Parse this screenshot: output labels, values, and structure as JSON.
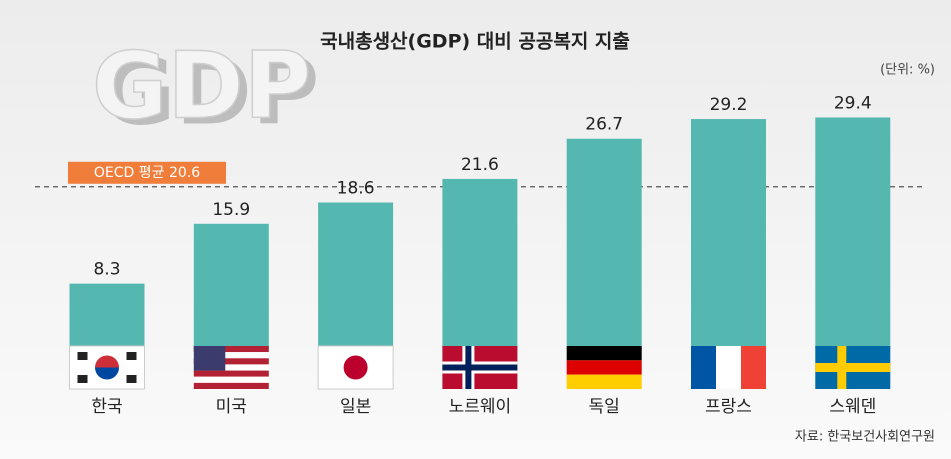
{
  "chart_data": {
    "type": "bar",
    "title": "국내총생산(GDP) 대비 공공복지 지출",
    "unit": "(단위: %)",
    "source": "자료: 한국보건사회연구원",
    "watermark": "GDP",
    "categories": [
      "한국",
      "미국",
      "일본",
      "노르웨이",
      "독일",
      "프랑스",
      "스웨덴"
    ],
    "values": [
      8.3,
      15.9,
      18.6,
      21.6,
      26.7,
      29.2,
      29.4
    ],
    "color": "#55b8b0",
    "reference": {
      "value": 20.6,
      "label": "OECD 평균 20.6"
    },
    "ylim": [
      0,
      40
    ]
  }
}
